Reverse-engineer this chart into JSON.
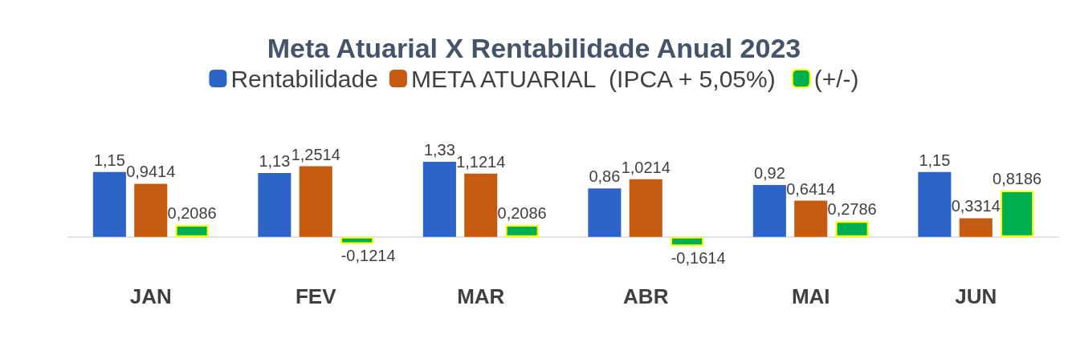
{
  "chart_data": {
    "type": "bar",
    "title": "Meta Atuarial X Rentabilidade Anual 2023",
    "categories": [
      "JAN",
      "FEV",
      "MAR",
      "ABR",
      "MAI",
      "JUN"
    ],
    "series": [
      {
        "name": "Rentabilidade",
        "color": "#2e64c8",
        "values": [
          1.15,
          1.13,
          1.33,
          0.86,
          0.92,
          1.15
        ],
        "value_labels": [
          "1,15",
          "1,13",
          "1,33",
          "0,86",
          "0,92",
          "1,15"
        ]
      },
      {
        "name": "META ATUARIAL  (IPCA + 5,05%)",
        "color": "#c55a11",
        "values": [
          0.9414,
          1.2514,
          1.1214,
          1.0214,
          0.6414,
          0.3314
        ],
        "value_labels": [
          "0,9414",
          "1,2514",
          "1,1214",
          "1,0214",
          "0,6414",
          "0,3314"
        ]
      },
      {
        "name": "(+/-)",
        "color": "#00b050",
        "values": [
          0.2086,
          -0.1214,
          0.2086,
          -0.1614,
          0.2786,
          0.8186
        ],
        "value_labels": [
          "0,2086",
          "-0,1214",
          "0,2086",
          "-0,1614",
          "0,2786",
          "0,8186"
        ]
      }
    ],
    "legend": "top"
  }
}
